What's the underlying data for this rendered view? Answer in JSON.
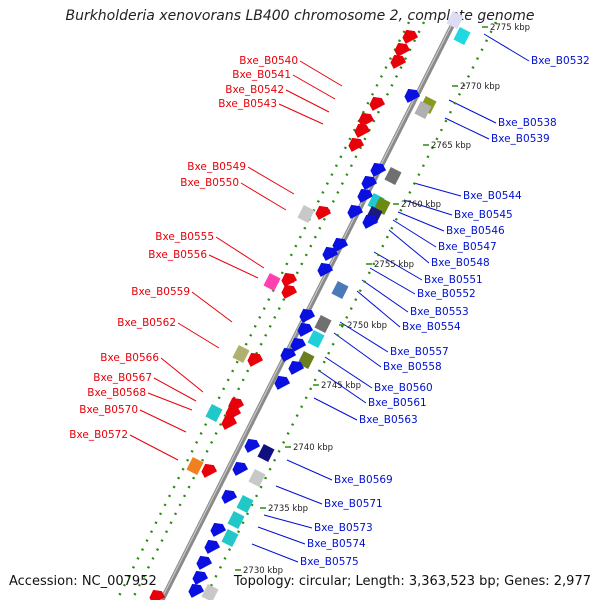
{
  "title": "Burkholderia xenovorans LB400 chromosome 2, complete genome",
  "footer": {
    "accession": "Accession: NC_007952",
    "info": "Topology: circular; Length: 3,363,523 bp; Genes: 2,977"
  },
  "ticks": [
    {
      "label": "2775 kbp"
    },
    {
      "label": "2770 kbp"
    },
    {
      "label": "2765 kbp"
    },
    {
      "label": "2760 kbp"
    },
    {
      "label": "2755 kbp"
    },
    {
      "label": "2750 kbp"
    },
    {
      "label": "2745 kbp"
    },
    {
      "label": "2740 kbp"
    },
    {
      "label": "2735 kbp"
    },
    {
      "label": "2730 kbp"
    }
  ],
  "left_labels": [
    "Bxe_B0540",
    "Bxe_B0541",
    "Bxe_B0542",
    "Bxe_B0543",
    "Bxe_B0549",
    "Bxe_B0550",
    "Bxe_B0555",
    "Bxe_B0556",
    "Bxe_B0559",
    "Bxe_B0562",
    "Bxe_B0566",
    "Bxe_B0567",
    "Bxe_B0568",
    "Bxe_B0570",
    "Bxe_B0572"
  ],
  "right_labels": [
    "Bxe_B0532",
    "Bxe_B0538",
    "Bxe_B0539",
    "Bxe_B0544",
    "Bxe_B0545",
    "Bxe_B0546",
    "Bxe_B0547",
    "Bxe_B0548",
    "Bxe_B0551",
    "Bxe_B0552",
    "Bxe_B0553",
    "Bxe_B0554",
    "Bxe_B0557",
    "Bxe_B0558",
    "Bxe_B0560",
    "Bxe_B0561",
    "Bxe_B0563",
    "Bxe_B0569",
    "Bxe_B0571",
    "Bxe_B0573",
    "Bxe_B0574",
    "Bxe_B0575"
  ],
  "colors": {
    "left_label": "#e8000a",
    "right_label": "#0010d0",
    "backbone": "#8c8c8c",
    "dots": "#2a8a10",
    "forward_gene": "#e8000a",
    "reverse_gene": "#0a10e0"
  }
}
